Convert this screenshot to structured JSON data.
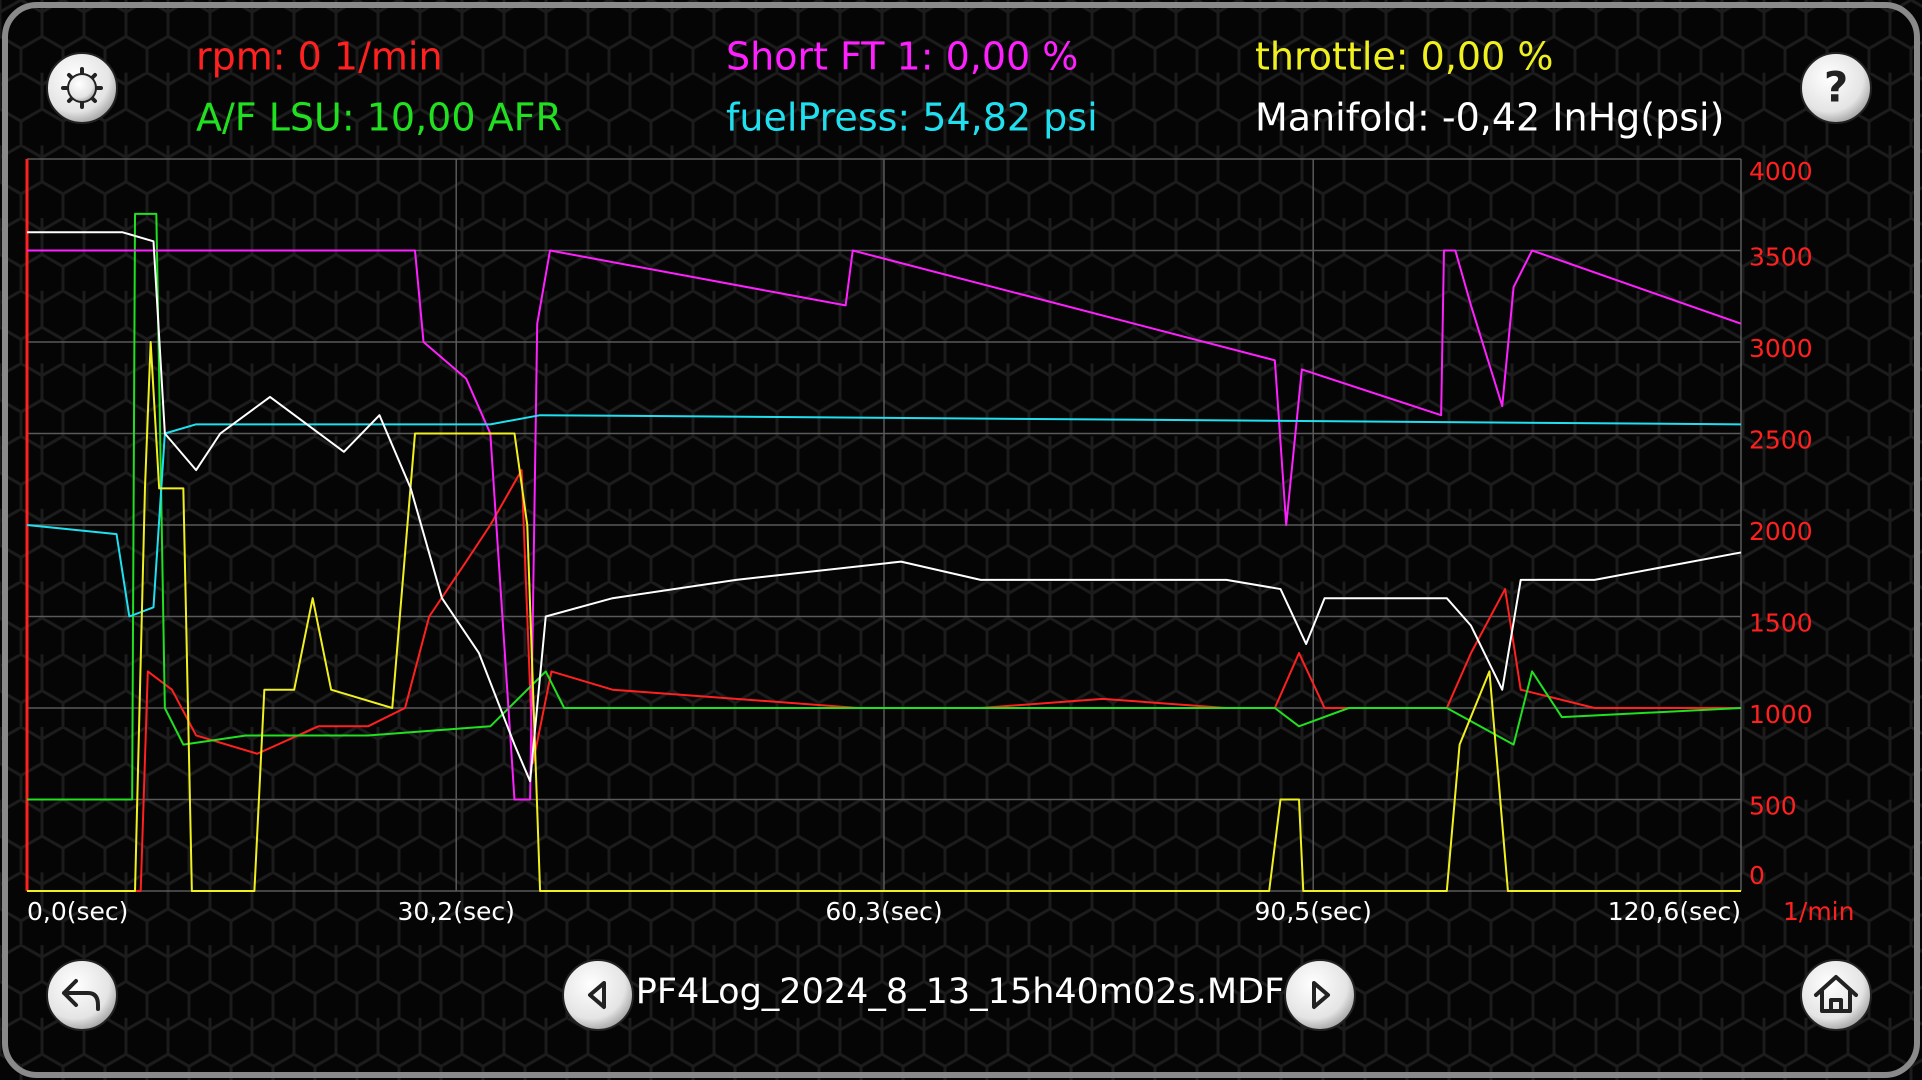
{
  "chart_data": {
    "type": "line",
    "xlim": [
      0,
      120.6
    ],
    "xticks": [
      {
        "value": 0,
        "label": "0,0(sec)"
      },
      {
        "value": 30.2,
        "label": "30,2(sec)"
      },
      {
        "value": 60.3,
        "label": "60,3(sec)"
      },
      {
        "value": 90.5,
        "label": "90,5(sec)"
      },
      {
        "value": 120.6,
        "label": "120,6(sec)"
      }
    ],
    "ylim": [
      0,
      4000
    ],
    "yticks": [
      0,
      500,
      1000,
      1500,
      2000,
      2500,
      3000,
      3500,
      4000
    ],
    "ylabel": "1/min",
    "grid": true,
    "series": [
      {
        "name": "rpm: 0 1/min",
        "color": "#ff2020",
        "x": [
          0,
          8.0,
          8.5,
          10.2,
          11.9,
          16.2,
          20.5,
          24.0,
          26.6,
          28.3,
          30.9,
          32.6,
          34.8,
          35.6,
          36.9,
          41.2,
          49.9,
          58.5,
          67.1,
          75.7,
          84.4,
          87.8,
          89.5,
          91.3,
          99.9,
          101.6,
          104.0,
          105.1,
          110.3,
          120.6
        ],
        "values": [
          0,
          0,
          1200,
          1100,
          850,
          750,
          900,
          900,
          1000,
          1500,
          1800,
          2000,
          2300,
          700,
          1200,
          1100,
          1050,
          1000,
          1000,
          1050,
          1000,
          1000,
          1300,
          1000,
          1000,
          1300,
          1650,
          1100,
          1000,
          1000
        ]
      },
      {
        "name": "A/F LSU: 10,00 AFR",
        "color": "#20e020",
        "x": [
          0,
          7.4,
          7.6,
          9.1,
          9.7,
          11.0,
          15.4,
          24.0,
          32.6,
          36.5,
          37.8,
          49.9,
          87.8,
          89.5,
          93.0,
          99.9,
          104.6,
          105.9,
          108.0,
          120.6
        ],
        "values": [
          500,
          500,
          3700,
          3700,
          1000,
          800,
          850,
          850,
          900,
          1200,
          1000,
          1000,
          1000,
          900,
          1000,
          1000,
          800,
          1200,
          950,
          1000
        ]
      },
      {
        "name": "Short FT 1: 0,00 %",
        "color": "#ff20ff",
        "x": [
          0,
          27.3,
          27.9,
          30.9,
          32.6,
          34.3,
          35.4,
          35.9,
          36.8,
          57.6,
          58.1,
          87.8,
          88.6,
          89.7,
          99.5,
          99.7,
          100.5,
          101.6,
          103.8,
          104.6,
          105.9,
          120.6
        ],
        "values": [
          3500,
          3500,
          3000,
          2800,
          2500,
          500,
          500,
          3100,
          3500,
          3200,
          3500,
          2900,
          2000,
          2850,
          2600,
          3500,
          3500,
          3200,
          2650,
          3300,
          3500,
          3100
        ]
      },
      {
        "name": "fuelPress: 54,82 psi",
        "color": "#20e0f0",
        "x": [
          0,
          6.3,
          7.2,
          8.9,
          9.7,
          11.9,
          32.6,
          36.1,
          120.6
        ],
        "values": [
          2000,
          1950,
          1500,
          1550,
          2500,
          2550,
          2550,
          2600,
          2550
        ]
      },
      {
        "name": "throttle: 0,00 %",
        "color": "#f0f020",
        "x": [
          0,
          7.6,
          8.3,
          8.7,
          9.3,
          11.0,
          11.6,
          16.0,
          16.7,
          18.8,
          20.1,
          21.4,
          25.7,
          27.3,
          34.3,
          35.2,
          36.1,
          87.4,
          88.2,
          89.5,
          89.8,
          99.9,
          100.8,
          102.9,
          104.2,
          120.6
        ],
        "values": [
          0,
          0,
          2200,
          3000,
          2200,
          2200,
          0,
          0,
          1100,
          1100,
          1600,
          1100,
          1000,
          2500,
          2500,
          2000,
          0,
          0,
          500,
          500,
          0,
          0,
          800,
          1200,
          0,
          0
        ]
      },
      {
        "name": "Manifold: -0,42 InHg(psi)",
        "color": "#ffffff",
        "x": [
          0,
          6.7,
          8.9,
          9.7,
          11.9,
          13.6,
          17.1,
          22.3,
          24.8,
          27.0,
          29.2,
          31.8,
          34.3,
          35.4,
          36.5,
          41.2,
          49.9,
          61.5,
          67.1,
          84.4,
          88.2,
          90.0,
          91.3,
          99.9,
          101.6,
          103.8,
          105.1,
          110.3,
          120.6
        ],
        "values": [
          3600,
          3600,
          3550,
          2500,
          2300,
          2500,
          2700,
          2400,
          2600,
          2200,
          1600,
          1300,
          800,
          600,
          1500,
          1600,
          1700,
          1800,
          1700,
          1700,
          1650,
          1350,
          1600,
          1600,
          1450,
          1100,
          1700,
          1700,
          1850
        ]
      }
    ]
  },
  "buttons": {
    "help": "?"
  },
  "footer": {
    "file_name": "PF4Log_2024_8_13_15h40m02s.MDF"
  }
}
